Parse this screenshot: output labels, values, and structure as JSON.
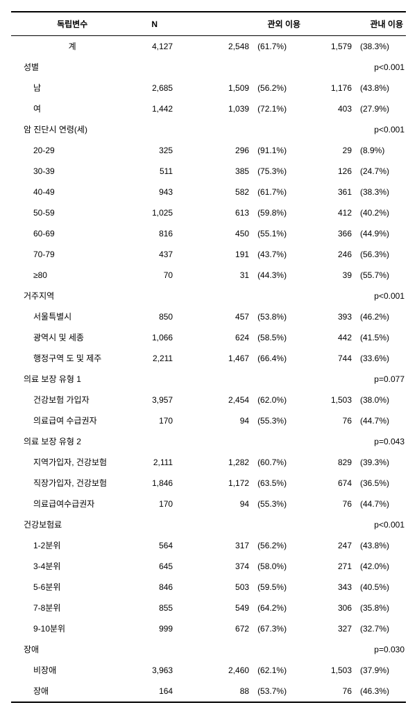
{
  "headers": {
    "var": "독립변수",
    "n": "N",
    "out": "관외 이용",
    "in": "관내 이용"
  },
  "total": {
    "label": "계",
    "n": "4,127",
    "out_n": "2,548",
    "out_p": "(61.7%)",
    "in_n": "1,579",
    "in_p": "(38.3%)"
  },
  "groups": [
    {
      "title": "성별",
      "pval": "p<0.001",
      "rows": [
        {
          "label": "남",
          "n": "2,685",
          "out_n": "1,509",
          "out_p": "(56.2%)",
          "in_n": "1,176",
          "in_p": "(43.8%)"
        },
        {
          "label": "여",
          "n": "1,442",
          "out_n": "1,039",
          "out_p": "(72.1%)",
          "in_n": "403",
          "in_p": "(27.9%)"
        }
      ]
    },
    {
      "title": "암 진단시 연령(세)",
      "pval": "p<0.001",
      "rows": [
        {
          "label": "20-29",
          "n": "325",
          "out_n": "296",
          "out_p": "(91.1%)",
          "in_n": "29",
          "in_p": "(8.9%)"
        },
        {
          "label": "30-39",
          "n": "511",
          "out_n": "385",
          "out_p": "(75.3%)",
          "in_n": "126",
          "in_p": "(24.7%)"
        },
        {
          "label": "40-49",
          "n": "943",
          "out_n": "582",
          "out_p": "(61.7%)",
          "in_n": "361",
          "in_p": "(38.3%)"
        },
        {
          "label": "50-59",
          "n": "1,025",
          "out_n": "613",
          "out_p": "(59.8%)",
          "in_n": "412",
          "in_p": "(40.2%)"
        },
        {
          "label": "60-69",
          "n": "816",
          "out_n": "450",
          "out_p": "(55.1%)",
          "in_n": "366",
          "in_p": "(44.9%)"
        },
        {
          "label": "70-79",
          "n": "437",
          "out_n": "191",
          "out_p": "(43.7%)",
          "in_n": "246",
          "in_p": "(56.3%)"
        },
        {
          "label": "≥80",
          "n": "70",
          "out_n": "31",
          "out_p": "(44.3%)",
          "in_n": "39",
          "in_p": "(55.7%)"
        }
      ]
    },
    {
      "title": "거주지역",
      "pval": "p<0.001",
      "rows": [
        {
          "label": "서울특별시",
          "n": "850",
          "out_n": "457",
          "out_p": "(53.8%)",
          "in_n": "393",
          "in_p": "(46.2%)"
        },
        {
          "label": "광역시 및 세종",
          "n": "1,066",
          "out_n": "624",
          "out_p": "(58.5%)",
          "in_n": "442",
          "in_p": "(41.5%)"
        },
        {
          "label": "행정구역 도 및 제주",
          "n": "2,211",
          "out_n": "1,467",
          "out_p": "(66.4%)",
          "in_n": "744",
          "in_p": "(33.6%)"
        }
      ]
    },
    {
      "title": "의료 보장 유형 1",
      "pval": "p=0.077",
      "rows": [
        {
          "label": "건강보험 가입자",
          "n": "3,957",
          "out_n": "2,454",
          "out_p": "(62.0%)",
          "in_n": "1,503",
          "in_p": "(38.0%)"
        },
        {
          "label": "의료급여 수급권자",
          "n": "170",
          "out_n": "94",
          "out_p": "(55.3%)",
          "in_n": "76",
          "in_p": "(44.7%)"
        }
      ]
    },
    {
      "title": "의료 보장 유형 2",
      "pval": "p=0.043",
      "rows": [
        {
          "label": "지역가입자, 건강보험",
          "n": "2,111",
          "out_n": "1,282",
          "out_p": "(60.7%)",
          "in_n": "829",
          "in_p": "(39.3%)"
        },
        {
          "label": "직장가입자, 건강보험",
          "n": "1,846",
          "out_n": "1,172",
          "out_p": "(63.5%)",
          "in_n": "674",
          "in_p": "(36.5%)"
        },
        {
          "label": "의료급여수급권자",
          "n": "170",
          "out_n": "94",
          "out_p": "(55.3%)",
          "in_n": "76",
          "in_p": "(44.7%)"
        }
      ]
    },
    {
      "title": "건강보험료",
      "pval": "p<0.001",
      "rows": [
        {
          "label": "1-2분위",
          "n": "564",
          "out_n": "317",
          "out_p": "(56.2%)",
          "in_n": "247",
          "in_p": "(43.8%)"
        },
        {
          "label": "3-4분위",
          "n": "645",
          "out_n": "374",
          "out_p": "(58.0%)",
          "in_n": "271",
          "in_p": "(42.0%)"
        },
        {
          "label": "5-6분위",
          "n": "846",
          "out_n": "503",
          "out_p": "(59.5%)",
          "in_n": "343",
          "in_p": "(40.5%)"
        },
        {
          "label": "7-8분위",
          "n": "855",
          "out_n": "549",
          "out_p": "(64.2%)",
          "in_n": "306",
          "in_p": "(35.8%)"
        },
        {
          "label": "9-10분위",
          "n": "999",
          "out_n": "672",
          "out_p": "(67.3%)",
          "in_n": "327",
          "in_p": "(32.7%)"
        }
      ]
    },
    {
      "title": "장애",
      "pval": "p=0.030",
      "rows": [
        {
          "label": "비장애",
          "n": "3,963",
          "out_n": "2,460",
          "out_p": "(62.1%)",
          "in_n": "1,503",
          "in_p": "(37.9%)"
        },
        {
          "label": "장애",
          "n": "164",
          "out_n": "88",
          "out_p": "(53.7%)",
          "in_n": "76",
          "in_p": "(46.3%)"
        }
      ]
    }
  ]
}
